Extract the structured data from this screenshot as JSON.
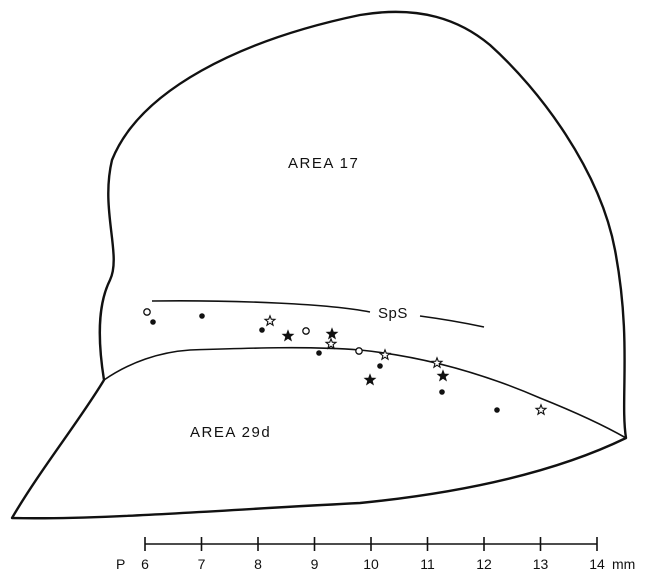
{
  "regions": {
    "area17": "AREA 17",
    "area29d": "AREA 29d",
    "sulcus": "SpS"
  },
  "scale": {
    "prefix": "P",
    "ticks": [
      "6",
      "7",
      "8",
      "9",
      "10",
      "11",
      "12",
      "13",
      "14"
    ],
    "unit": "mm"
  },
  "marker_types": [
    "filled-circle",
    "open-circle",
    "filled-star",
    "open-star"
  ]
}
